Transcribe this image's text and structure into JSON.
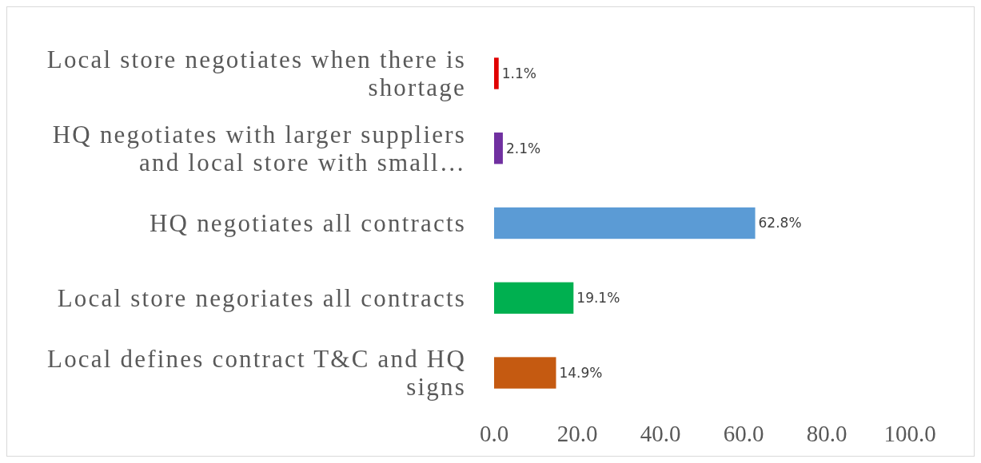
{
  "chart_data": {
    "type": "bar",
    "orientation": "horizontal",
    "categories": [
      "Local store negotiates when there is shortage",
      "HQ negotiates with larger suppliers and local store with small…",
      "HQ negotiates all contracts",
      "Local store negoriates all contracts",
      "Local defines contract T&C and HQ signs"
    ],
    "values": [
      1.1,
      2.1,
      62.8,
      19.1,
      14.9
    ],
    "colors": [
      "#e00000",
      "#7030a0",
      "#5b9bd5",
      "#00b050",
      "#c55a11"
    ],
    "value_labels": [
      "1.1%",
      "2.1%",
      "62.8%",
      "19.1%",
      "14.9%"
    ],
    "xlim": [
      0,
      100
    ],
    "xticks": [
      {
        "value": 0,
        "label": "0.0"
      },
      {
        "value": 20,
        "label": "20.0"
      },
      {
        "value": 40,
        "label": "40.0"
      },
      {
        "value": 60,
        "label": "60.0"
      },
      {
        "value": 80,
        "label": "80.0"
      },
      {
        "value": 100,
        "label": "100.0"
      }
    ],
    "grid": false
  }
}
